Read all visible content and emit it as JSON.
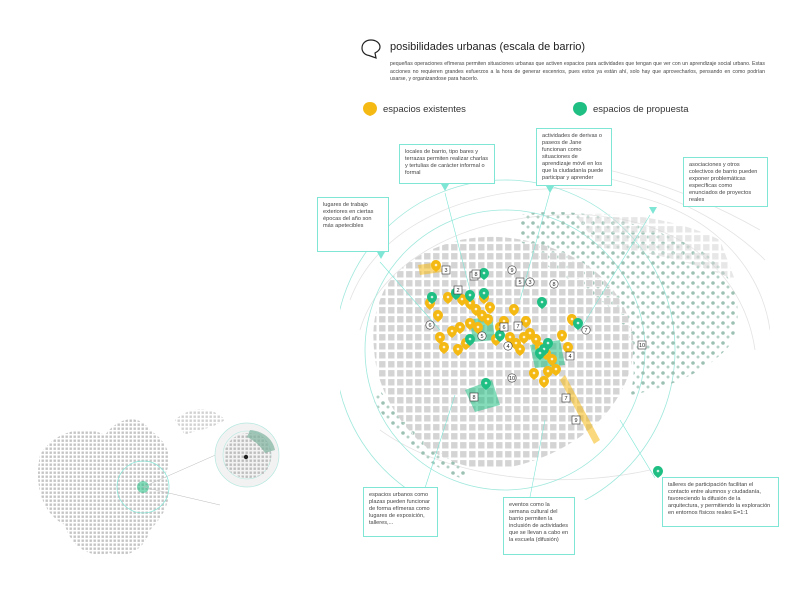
{
  "header": {
    "title": "posibilidades urbanas (escala de barrio)",
    "intro": "pequeñas operaciones efímeras permiten situaciones urbanas que activen espacios para actividades que tengan que ver con un aprendizaje social urbano. Estas acciones no requieren grandes esfuerzos a la hora de generar escenrios, pues estos ya están ahí, solo hay que aprovecharlos, pensando en como podrían usarse, y organizandose para hacerlo."
  },
  "legend": [
    {
      "label": "espacios existentes",
      "color": "#f5b914"
    },
    {
      "label": "espacios de propuesta",
      "color": "#1fbf84"
    }
  ],
  "colors": {
    "existing": "#f5b914",
    "proposal": "#1fbf84",
    "callout_border": "#7fe6d6",
    "building_fill": "#d9d9d9",
    "vegetation": "#8fb7a8"
  },
  "callouts": [
    {
      "id": "bares",
      "text": "locales de barrio, tipo bares y terrazas permiten realizar charlas y tertulias de carácter informal o formal"
    },
    {
      "id": "derivas",
      "text": "actividades de derivas o paseos de Jane funcionan como situaciones de aprendizaje móvil en los que la ciudadanía puede participar y aprender"
    },
    {
      "id": "asociaciones",
      "text": "asociaciones y otros colectivos de barrio pueden exponer problemáticas específicas como enunciados de proyectos reales"
    },
    {
      "id": "trabajo",
      "text": "lugares de trabajo exteriores en ciertas épocas del año son más apetecibles"
    },
    {
      "id": "plazas",
      "text": "espacios urbanos como plazas pueden funcionar de forma efímeras como lugares de exposición, talleres,..."
    },
    {
      "id": "semana",
      "text": "eventos como la semana cultural del barrio permiten la inclusión de actividades que se llevan a cabo en la escuela (difusión)"
    },
    {
      "id": "talleres",
      "text": "talleres de participación facilitan el contacto entre alumnos y ciudadanía, favoreciendo la difusión de la arquitectura, y permitiendo la exploración en entornos físicos reales E=1:1"
    }
  ],
  "map": {
    "existing_markers": 40,
    "proposal_markers": 14,
    "square_labels": [
      "3",
      "2",
      "1",
      "5",
      "6",
      "4",
      "8",
      "7",
      "9",
      "10",
      "8",
      "7"
    ],
    "circle_labels": [
      "9",
      "3",
      "8",
      "6",
      "5",
      "4",
      "10",
      "7"
    ]
  }
}
